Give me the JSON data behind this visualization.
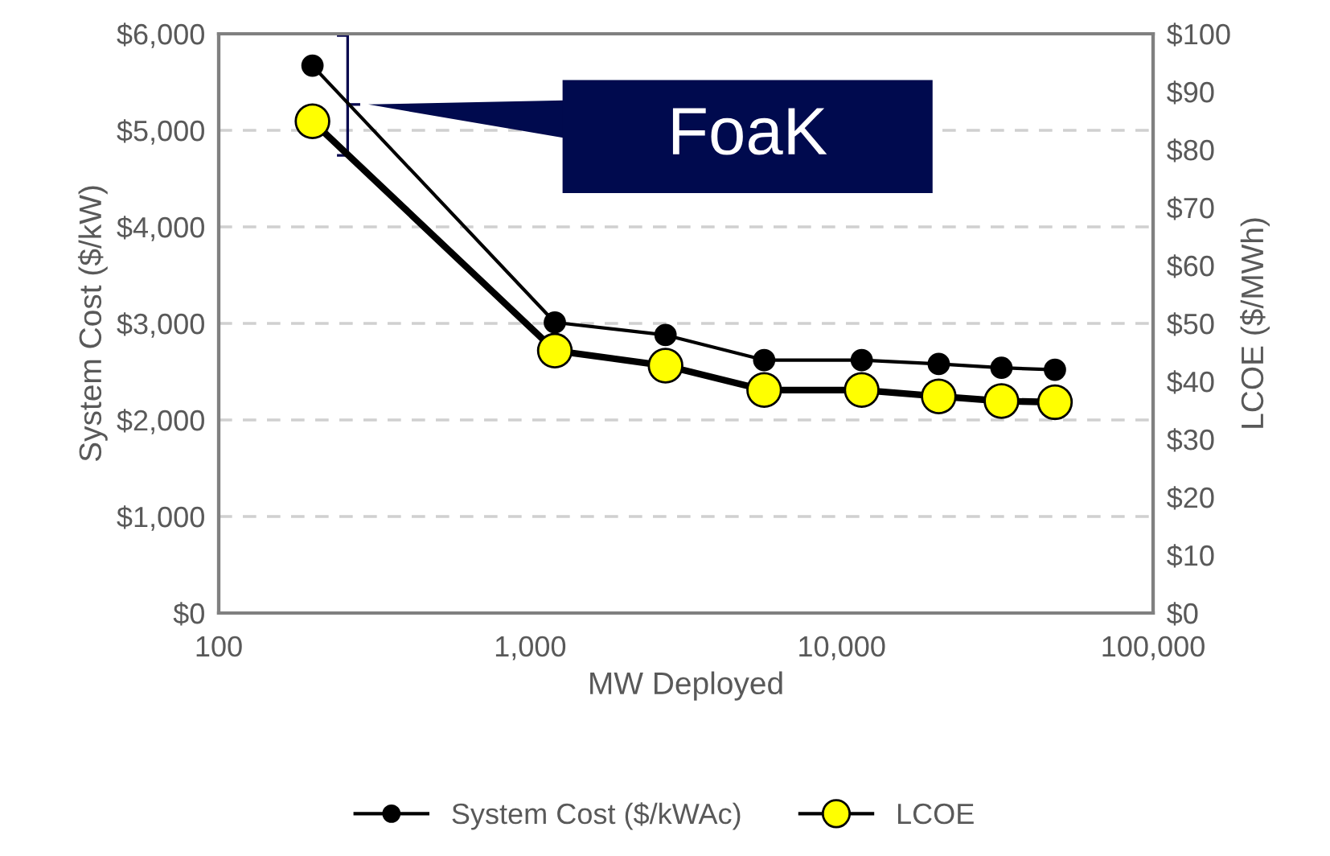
{
  "chart_data": {
    "type": "line",
    "xlabel": "MW Deployed",
    "ylabel": "System Cost ($/kW)",
    "y2label": "LCOE ($/MWh)",
    "log": "x",
    "x": [
      200,
      1200,
      2720,
      5640,
      11600,
      20500,
      32600,
      48400
    ],
    "series": [
      {
        "name": "System Cost ($/kWAc)",
        "color": "#000000",
        "values": [
          5670,
          3010,
          2880,
          2620,
          2620,
          2580,
          2540,
          2520
        ]
      },
      {
        "name": "LCOE",
        "color": "#ffff00",
        "axis": "y2",
        "values": [
          84.9,
          45.3,
          42.7,
          38.5,
          38.5,
          37.4,
          36.6,
          36.4
        ]
      }
    ],
    "xlim": [
      100,
      100000
    ],
    "xticks": [
      100,
      {
        "value": 1000,
        "label": "1,000"
      },
      {
        "value": 10000,
        "label": "10,000"
      },
      {
        "value": 100000,
        "label": "100,000"
      }
    ],
    "ylim": [
      0,
      6000
    ],
    "yticks": [
      {
        "value": 0,
        "label": "$0"
      },
      {
        "value": 1000,
        "label": "$1,000"
      },
      {
        "value": 2000,
        "label": "$2,000"
      },
      {
        "value": 3000,
        "label": "$3,000"
      },
      {
        "value": 4000,
        "label": "$4,000"
      },
      {
        "value": 5000,
        "label": "$5,000"
      },
      {
        "value": 6000,
        "label": "$6,000"
      }
    ],
    "y2lim": [
      0,
      100
    ],
    "y2ticks": [
      {
        "value": 0,
        "label": "$0"
      },
      {
        "value": 10,
        "label": "$10"
      },
      {
        "value": 20,
        "label": "$20"
      },
      {
        "value": 30,
        "label": "$30"
      },
      {
        "value": 40,
        "label": "$40"
      },
      {
        "value": 50,
        "label": "$50"
      },
      {
        "value": 60,
        "label": "$60"
      },
      {
        "value": 70,
        "label": "$70"
      },
      {
        "value": 80,
        "label": "$80"
      },
      {
        "value": 90,
        "label": "$90"
      },
      {
        "value": 100,
        "label": "$100"
      }
    ],
    "annotations": [
      "FoaK"
    ],
    "grid": "y",
    "legend": "bottom",
    "marker": "circle",
    "line_style": "solid"
  }
}
